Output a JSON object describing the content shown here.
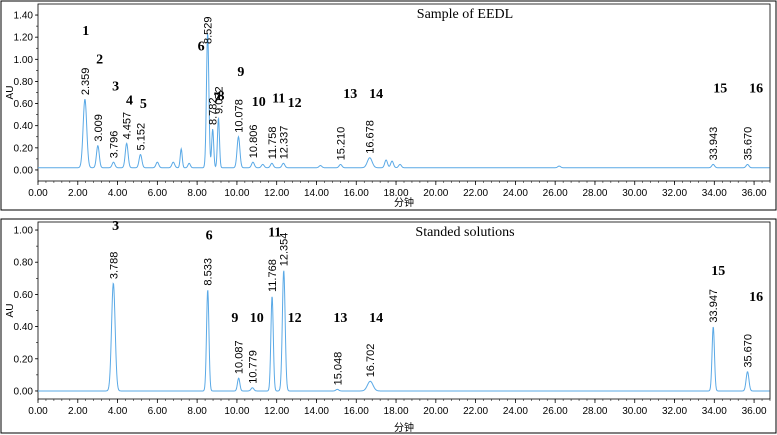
{
  "chart_data": [
    {
      "type": "line",
      "title": "Sample of EEDL",
      "xlabel": "分钟",
      "ylabel": "AU",
      "xlim": [
        0,
        36.8
      ],
      "ylim": [
        -0.1,
        1.5
      ],
      "yticks": [
        "0.00",
        "0.20",
        "0.40",
        "0.60",
        "0.80",
        "1.00",
        "1.20",
        "1.40"
      ],
      "xticks": [
        "0.00",
        "2.00",
        "4.00",
        "6.00",
        "8.00",
        "10.00",
        "12.00",
        "14.00",
        "16.00",
        "18.00",
        "20.00",
        "22.00",
        "24.00",
        "26.00",
        "28.00",
        "30.00",
        "32.00",
        "34.00",
        "36.00"
      ],
      "baseline": 0.02,
      "color": "#5aa9e6",
      "peaks": [
        {
          "rt": 2.359,
          "label": "2.359",
          "height": 0.62,
          "width": 0.09,
          "num": "1",
          "num_x": 2.4,
          "num_y": 1.22
        },
        {
          "rt": 3.009,
          "label": "3.009",
          "height": 0.2,
          "width": 0.07,
          "num": "2",
          "num_x": 3.1,
          "num_y": 0.96
        },
        {
          "rt": 3.796,
          "label": "3.796",
          "height": 0.05,
          "width": 0.07,
          "num": "3",
          "num_x": 3.9,
          "num_y": 0.72
        },
        {
          "rt": 4.457,
          "label": "4.457",
          "height": 0.22,
          "width": 0.07,
          "num": "4",
          "num_x": 4.6,
          "num_y": 0.59
        },
        {
          "rt": 5.152,
          "label": "5.152",
          "height": 0.12,
          "width": 0.07,
          "num": "5",
          "num_x": 5.3,
          "num_y": 0.56
        },
        {
          "rt": 8.529,
          "label": "8.529",
          "height": 1.22,
          "width": 0.06,
          "num": "6",
          "num_x": 8.2,
          "num_y": 1.08
        },
        {
          "rt": 8.782,
          "label": "8.782",
          "height": 0.35,
          "width": 0.05,
          "num": "7",
          "num_x": 9.0,
          "num_y": 0.62
        },
        {
          "rt": 9.072,
          "label": "9.072",
          "height": 0.45,
          "width": 0.05,
          "num": "8",
          "num_x": 9.2,
          "num_y": 0.63
        },
        {
          "rt": 10.078,
          "label": "10.078",
          "height": 0.28,
          "width": 0.07,
          "num": "9",
          "num_x": 10.2,
          "num_y": 0.85
        },
        {
          "rt": 10.806,
          "label": "10.806",
          "height": 0.05,
          "width": 0.07,
          "num": "10",
          "num_x": 11.1,
          "num_y": 0.58
        },
        {
          "rt": 11.758,
          "label": "11.758",
          "height": 0.04,
          "width": 0.07,
          "num": "11",
          "num_x": 12.1,
          "num_y": 0.61
        },
        {
          "rt": 12.337,
          "label": "12.337",
          "height": 0.04,
          "width": 0.07,
          "num": "12",
          "num_x": 12.9,
          "num_y": 0.57
        },
        {
          "rt": 15.21,
          "label": "15.210",
          "height": 0.03,
          "width": 0.07,
          "num": "13",
          "num_x": 15.7,
          "num_y": 0.65
        },
        {
          "rt": 16.678,
          "label": "16.678",
          "height": 0.09,
          "width": 0.12,
          "num": "14",
          "num_x": 17.0,
          "num_y": 0.65
        },
        {
          "rt": 33.943,
          "label": "33.943",
          "height": 0.03,
          "width": 0.07,
          "num": "15",
          "num_x": 34.3,
          "num_y": 0.7
        },
        {
          "rt": 35.67,
          "label": "35.670",
          "height": 0.03,
          "width": 0.07,
          "num": "16",
          "num_x": 36.1,
          "num_y": 0.7
        }
      ],
      "minor_peaks": [
        {
          "rt": 6.0,
          "height": 0.05,
          "width": 0.07
        },
        {
          "rt": 6.8,
          "height": 0.05,
          "width": 0.07
        },
        {
          "rt": 7.2,
          "height": 0.17,
          "width": 0.05
        },
        {
          "rt": 7.6,
          "height": 0.04,
          "width": 0.06
        },
        {
          "rt": 17.5,
          "height": 0.07,
          "width": 0.07
        },
        {
          "rt": 17.8,
          "height": 0.06,
          "width": 0.07
        },
        {
          "rt": 18.2,
          "height": 0.03,
          "width": 0.07
        },
        {
          "rt": 11.3,
          "height": 0.03,
          "width": 0.07
        },
        {
          "rt": 14.2,
          "height": 0.02,
          "width": 0.07
        },
        {
          "rt": 26.2,
          "height": 0.015,
          "width": 0.07
        }
      ]
    },
    {
      "type": "line",
      "title": "Standed solutions",
      "xlabel": "分钟",
      "ylabel": "AU",
      "xlim": [
        0,
        36.8
      ],
      "ylim": [
        -0.05,
        1.05
      ],
      "yticks": [
        "0.00",
        "0.20",
        "0.40",
        "0.60",
        "0.80",
        "1.00"
      ],
      "xticks": [
        "0.00",
        "2.00",
        "4.00",
        "6.00",
        "8.00",
        "10.00",
        "12.00",
        "14.00",
        "16.00",
        "18.00",
        "20.00",
        "22.00",
        "24.00",
        "26.00",
        "28.00",
        "30.00",
        "32.00",
        "34.00",
        "36.00"
      ],
      "baseline": 0.0,
      "color": "#5aa9e6",
      "peaks": [
        {
          "rt": 3.788,
          "label": "3.788",
          "height": 0.67,
          "width": 0.09,
          "num": "3",
          "num_x": 3.9,
          "num_y": 1.0
        },
        {
          "rt": 8.533,
          "label": "8.533",
          "height": 0.63,
          "width": 0.06,
          "num": "6",
          "num_x": 8.6,
          "num_y": 0.94
        },
        {
          "rt": 10.087,
          "label": "10.087",
          "height": 0.08,
          "width": 0.06,
          "num": "9",
          "num_x": 9.9,
          "num_y": 0.43
        },
        {
          "rt": 10.779,
          "label": "10.779",
          "height": 0.02,
          "width": 0.07,
          "num": "10",
          "num_x": 11.0,
          "num_y": 0.43
        },
        {
          "rt": 11.768,
          "label": "11.768",
          "height": 0.59,
          "width": 0.06,
          "num": "11",
          "num_x": 11.9,
          "num_y": 0.96
        },
        {
          "rt": 12.354,
          "label": "12.354",
          "height": 0.75,
          "width": 0.07,
          "num": "12",
          "num_x": 12.9,
          "num_y": 0.43
        },
        {
          "rt": 15.048,
          "label": "15.048",
          "height": 0.01,
          "width": 0.07,
          "num": "13",
          "num_x": 15.2,
          "num_y": 0.43
        },
        {
          "rt": 16.702,
          "label": "16.702",
          "height": 0.06,
          "width": 0.14,
          "num": "14",
          "num_x": 17.0,
          "num_y": 0.43
        },
        {
          "rt": 33.947,
          "label": "33.947",
          "height": 0.4,
          "width": 0.06,
          "num": "15",
          "num_x": 34.2,
          "num_y": 0.72
        },
        {
          "rt": 35.67,
          "label": "35.670",
          "height": 0.12,
          "width": 0.07,
          "num": "16",
          "num_x": 36.1,
          "num_y": 0.56
        }
      ],
      "minor_peaks": []
    }
  ]
}
